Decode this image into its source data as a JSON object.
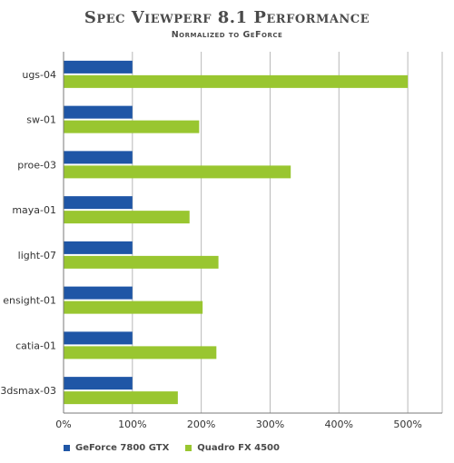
{
  "chart_data": {
    "type": "bar",
    "orientation": "horizontal",
    "title": "Spec Viewperf 8.1 Performance",
    "subtitle": "Normalized to GeForce",
    "categories": [
      "ugs-04",
      "sw-01",
      "proe-03",
      "maya-01",
      "light-07",
      "ensight-01",
      "catia-01",
      "3dsmax-03"
    ],
    "series": [
      {
        "name": "GeForce 7800 GTX",
        "color": "#1f56a6",
        "values": [
          100,
          100,
          100,
          100,
          100,
          100,
          100,
          100
        ]
      },
      {
        "name": "Quadro FX 4500",
        "color": "#99c630",
        "values": [
          500,
          197,
          330,
          183,
          225,
          202,
          222,
          166
        ]
      }
    ],
    "xlim": [
      0,
      550
    ],
    "xticks": [
      0,
      100,
      200,
      300,
      400,
      500
    ],
    "xtick_labels": [
      "0%",
      "100%",
      "200%",
      "300%",
      "400%",
      "500%"
    ],
    "grid": true,
    "legend_position": "bottom-left"
  }
}
